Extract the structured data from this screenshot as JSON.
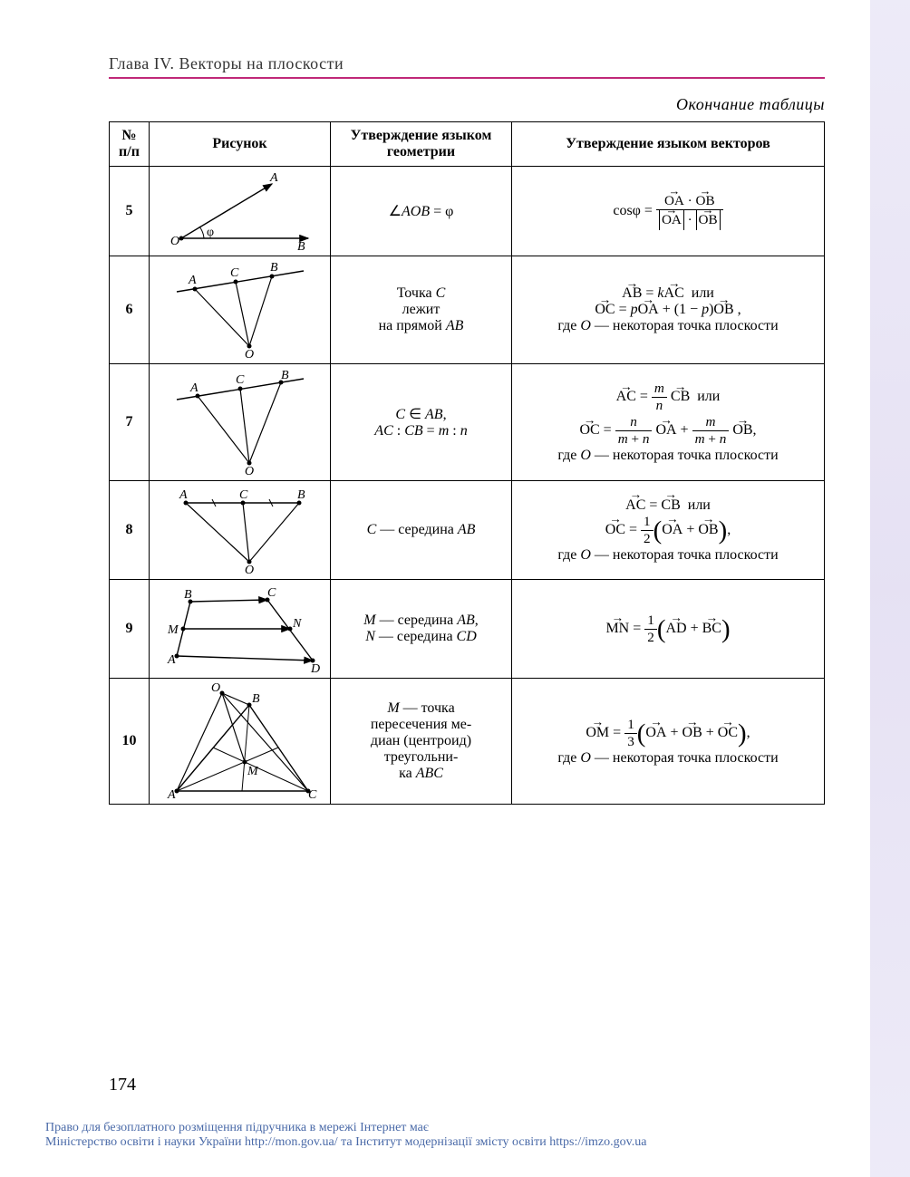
{
  "chapter": "Глава IV. Векторы на плоскости",
  "continuation": "Окончание таблицы",
  "page_number": "174",
  "headers": {
    "num": "№ п/п",
    "figure": "Рисунок",
    "geom": "Утверждение языком геометрии",
    "vec": "Утверждение языком векторов"
  },
  "rows": [
    {
      "num": "5",
      "geom_html": "∠<span class='math'>AOB</span> = φ",
      "vec_html": "cosφ = <span class='frac'><span class='num'><span class='vec'>OA</span> · <span class='vec'>OB</span></span><span class='den'><span class='abs'><span class='vec'>OA</span></span> · <span class='abs'><span class='vec'>OB</span></span></span></span>",
      "svg": "<svg width='170' height='90' viewBox='0 0 170 90'><defs><marker id='ah5' markerWidth='8' markerHeight='6' refX='7' refY='3' orient='auto'><polygon points='0,0 8,3 0,6' fill='#000'/></marker></defs><line x1='20' y1='75' x2='160' y2='75' stroke='#000' stroke-width='1.4' marker-end='url(#ah5)'/><line x1='20' y1='75' x2='120' y2='15' stroke='#000' stroke-width='1.4' marker-end='url(#ah5)'/><path d='M 45 75 A 25 25 0 0 0 40 62' fill='none' stroke='#000' stroke-width='1'/><circle cx='20' cy='75' r='2.5' fill='#000'/><text x='8' y='82' font-size='14' font-style='italic'>O</text><text x='118' y='12' font-size='14' font-style='italic'>A</text><text x='148' y='88' font-size='14' font-style='italic'>B</text><text x='48' y='72' font-size='14'>φ</text></svg>"
    },
    {
      "num": "6",
      "geom_html": "Точка <span class='math'>C</span><br>лежит<br>на прямой <span class='math'>AB</span>",
      "vec_html": "<span class='vec'>AB</span> = <span class='math'>k</span><span class='vec'>AC</span>&nbsp; или<br><span class='vec'>OC</span> = <span class='math'>p</span><span class='vec'>OA</span> + (1 − <span class='math'>p</span>)<span class='vec'>OB</span> ,<br>где <span class='math'>O</span> — некоторая точка плоскости",
      "svg": "<svg width='170' height='110' viewBox='0 0 170 110'><line x1='15' y1='35' x2='155' y2='12' stroke='#000' stroke-width='1.4'/><circle cx='35' cy='32' r='2.5' fill='#000'/><circle cx='80' cy='24' r='2.5' fill='#000'/><circle cx='120' cy='18' r='2.5' fill='#000'/><circle cx='95' cy='95' r='2.5' fill='#000'/><line x1='95' y1='95' x2='35' y2='32' stroke='#000' stroke-width='1.2'/><line x1='95' y1='95' x2='80' y2='24' stroke='#000' stroke-width='1.2'/><line x1='95' y1='95' x2='120' y2='18' stroke='#000' stroke-width='1.2'/><text x='28' y='26' font-size='14' font-style='italic'>A</text><text x='74' y='18' font-size='14' font-style='italic'>C</text><text x='118' y='12' font-size='14' font-style='italic'>B</text><text x='90' y='108' font-size='14' font-style='italic'>O</text></svg>"
    },
    {
      "num": "7",
      "geom_html": "<span class='math'>C</span> ∈ <span class='math'>AB</span>,<br><span class='math'>AC</span> : <span class='math'>CB</span> = <span class='math'>m</span> : <span class='math'>n</span>",
      "vec_html": "<span class='vec'>AC</span> = <span class='frac'><span class='num'><span class='math'>m</span></span><span class='den'><span class='math'>n</span></span></span> <span class='vec'>CB</span>&nbsp; или<br><span class='vec'>OC</span> = <span class='frac'><span class='num'><span class='math'>n</span></span><span class='den'><span class='math'>m</span> + <span class='math'>n</span></span></span> <span class='vec'>OA</span> + <span class='frac'><span class='num'><span class='math'>m</span></span><span class='den'><span class='math'>m</span> + <span class='math'>n</span></span></span> <span class='vec'>OB</span>,<br>где <span class='math'>O</span> — некоторая точка плоскости",
      "svg": "<svg width='170' height='120' viewBox='0 0 170 120'><line x1='15' y1='35' x2='155' y2='12' stroke='#000' stroke-width='1.4'/><circle cx='38' cy='31' r='2.5' fill='#000'/><circle cx='85' cy='23' r='2.5' fill='#000'/><circle cx='130' cy='16' r='2.5' fill='#000'/><circle cx='95' cy='105' r='2.5' fill='#000'/><line x1='95' y1='105' x2='38' y2='31' stroke='#000' stroke-width='1.2'/><line x1='95' y1='105' x2='85' y2='23' stroke='#000' stroke-width='1.2'/><line x1='95' y1='105' x2='130' y2='16' stroke='#000' stroke-width='1.2'/><text x='30' y='26' font-size='14' font-style='italic'>A</text><text x='80' y='17' font-size='14' font-style='italic'>C</text><text x='130' y='12' font-size='14' font-style='italic'>B</text><text x='90' y='118' font-size='14' font-style='italic'>O</text></svg>"
    },
    {
      "num": "8",
      "geom_html": "<span class='math'>C</span> — середина <span class='math'>AB</span>",
      "vec_html": "<span class='vec'>AC</span> = <span class='vec'>CB</span>&nbsp; или<br><span class='vec'>OC</span> = <span class='frac'><span class='num'>1</span><span class='den'>2</span></span><span class='lparen-big'>(</span><span class='vec'>OA</span> + <span class='vec'>OB</span><span class='rparen-big'>)</span>,<br>где <span class='math'>O</span> — некоторая точка плоскости",
      "svg": "<svg width='170' height='100' viewBox='0 0 170 100'><line x1='25' y1='20' x2='150' y2='20' stroke='#000' stroke-width='1.4'/><circle cx='25' cy='20' r='2.5' fill='#000'/><circle cx='88' cy='20' r='2.5' fill='#000'/><circle cx='150' cy='20' r='2.5' fill='#000'/><line x1='54' y1='16' x2='58' y2='24' stroke='#000' stroke-width='1'/><line x1='117' y1='16' x2='121' y2='24' stroke='#000' stroke-width='1'/><circle cx='95' cy='85' r='2.5' fill='#000'/><line x1='95' y1='85' x2='25' y2='20' stroke='#000' stroke-width='1.2'/><line x1='95' y1='85' x2='88' y2='20' stroke='#000' stroke-width='1.2'/><line x1='95' y1='85' x2='150' y2='20' stroke='#000' stroke-width='1.2'/><text x='18' y='15' font-size='14' font-style='italic'>A</text><text x='84' y='15' font-size='14' font-style='italic'>C</text><text x='148' y='15' font-size='14' font-style='italic'>B</text><text x='90' y='98' font-size='14' font-style='italic'>O</text></svg>"
    },
    {
      "num": "9",
      "geom_html": "<span class='math'>M</span> — середина <span class='math'>AB</span>,<br><span class='math'>N</span> — середина <span class='math'>CD</span>",
      "vec_html": "<span class='vec'>MN</span> = <span class='frac'><span class='num'>1</span><span class='den'>2</span></span><span class='lparen-big'>(</span><span class='vec'>AD</span> + <span class='vec'>BC</span><span class='rparen-big'>)</span>",
      "svg": "<svg width='180' height='100' viewBox='0 0 180 100'><defs><marker id='ah9' markerWidth='8' markerHeight='6' refX='7' refY='3' orient='auto'><polygon points='0,0 8,3 0,6' fill='#000'/></marker></defs><line x1='20' y1='80' x2='170' y2='85' stroke='#000' stroke-width='1.4' marker-end='url(#ah9)'/><line x1='35' y1='20' x2='120' y2='18' stroke='#000' stroke-width='1.4' marker-end='url(#ah9)'/><line x1='20' y1='80' x2='35' y2='20' stroke='#000' stroke-width='1.4'/><line x1='120' y1='18' x2='170' y2='85' stroke='#000' stroke-width='1.4'/><line x1='27' y1='50' x2='145' y2='50' stroke='#000' stroke-width='1.4' marker-end='url(#ah9)'/><circle cx='20' cy='80' r='2.5' fill='#000'/><circle cx='35' cy='20' r='2.5' fill='#000'/><circle cx='120' cy='18' r='2.5' fill='#000'/><circle cx='170' cy='85' r='2.5' fill='#000'/><circle cx='27' cy='50' r='2.5' fill='#000'/><circle cx='145' cy='50' r='2.5' fill='#000'/><text x='10' y='88' font-size='14' font-style='italic'>A</text><text x='28' y='16' font-size='14' font-style='italic'>B</text><text x='120' y='14' font-size='14' font-style='italic'>C</text><text x='168' y='98' font-size='14' font-style='italic'>D</text><text x='10' y='55' font-size='14' font-style='italic'>M</text><text x='148' y='48' font-size='14' font-style='italic'>N</text></svg>"
    },
    {
      "num": "10",
      "geom_html": "<span class='math'>M</span> — точка<br>пересечения ме-<br>диан (центроид)<br>треугольни-<br>ка <span class='math'>ABC</span>",
      "vec_html": "<span class='vec'>OM</span> = <span class='frac'><span class='num'>1</span><span class='den'>3</span></span><span class='lparen-big'>(</span><span class='vec'>OA</span> + <span class='vec'>OB</span> + <span class='vec'>OC</span><span class='rparen-big'>)</span>,<br>где <span class='math'>O</span> — некоторая точка плоскости",
      "svg": "<svg width='180' height='130' viewBox='0 0 180 130'><polygon points='20,120 100,25 165,120' fill='none' stroke='#000' stroke-width='1.4'/><line x1='20' y1='120' x2='132' y2='72' stroke='#000' stroke-width='1'/><line x1='100' y1='25' x2='92' y2='120' stroke='#000' stroke-width='1'/><line x1='165' y1='120' x2='60' y2='72' stroke='#000' stroke-width='1'/><circle cx='95' cy='88' r='2.5' fill='#000'/><circle cx='70' cy='12' r='2.5' fill='#000'/><line x1='70' y1='12' x2='20' y2='120' stroke='#000' stroke-width='1.2'/><line x1='70' y1='12' x2='100' y2='25' stroke='#000' stroke-width='1.2'/><line x1='70' y1='12' x2='165' y2='120' stroke='#000' stroke-width='1.2'/><line x1='70' y1='12' x2='95' y2='88' stroke='#000' stroke-width='1.2'/><circle cx='20' cy='120' r='2.5' fill='#000'/><circle cx='100' cy='25' r='2.5' fill='#000'/><circle cx='165' cy='120' r='2.5' fill='#000'/><text x='10' y='128' font-size='14' font-style='italic'>A</text><text x='103' y='22' font-size='14' font-style='italic'>B</text><text x='165' y='128' font-size='14' font-style='italic'>C</text><text x='98' y='102' font-size='14' font-style='italic'>M</text><text x='58' y='10' font-size='14' font-style='italic'>O</text></svg>"
    }
  ],
  "footer": {
    "line1": "Право для безоплатного розміщення підручника в мережі Інтернет має",
    "line2_pre": "Міністерство освіти і науки України ",
    "link1": "http://mon.gov.ua/",
    "mid": " та Інститут модернізації змісту освіти ",
    "link2": "https://imzo.gov.ua"
  },
  "colors": {
    "rule": "#c02878",
    "footer_text": "#4a6aa8",
    "sidebar_bg": "#e0d8f4"
  }
}
